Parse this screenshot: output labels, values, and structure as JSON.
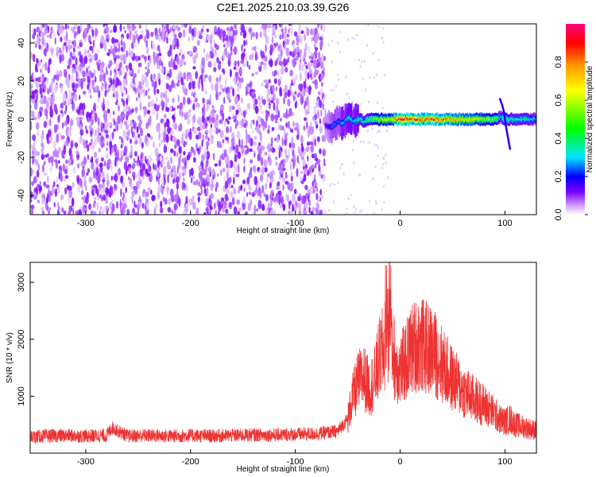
{
  "title": "C2E1.2025.210.03.39.G26",
  "chart_data": [
    {
      "type": "heatmap",
      "title": "C2E1.2025.210.03.39.G26",
      "xlabel": "Height of straight line (km)",
      "ylabel": "Frequency (Hz)",
      "xlim": [
        -353,
        130
      ],
      "ylim": [
        -50,
        50
      ],
      "xticks": [
        -300,
        -200,
        -100,
        0,
        100
      ],
      "yticks": [
        -40,
        -20,
        0,
        20,
        40
      ],
      "colorbar": {
        "label": "Normalized spectral amplitude",
        "range": [
          0,
          1
        ],
        "ticks": [
          0.0,
          0.2,
          0.4,
          0.6,
          0.8
        ],
        "colormap": [
          "#ffffff",
          "#cc99ff",
          "#7b00ff",
          "#0000ff",
          "#00e5ff",
          "#00ff00",
          "#ffff00",
          "#ff9900",
          "#ff0000",
          "#ff0080"
        ]
      },
      "features": {
        "noise_floor_region_x": [
          -353,
          -72
        ],
        "noise_floor_amplitude": 0.07,
        "signal_tone": {
          "x": [
            -72,
            -65,
            -60,
            -55,
            -50,
            -45,
            -40,
            -35,
            -30,
            -25,
            -20,
            -15,
            -10,
            -5,
            0,
            5,
            10,
            20,
            30,
            40,
            50,
            60,
            70,
            80,
            90,
            95,
            100,
            105,
            110,
            120,
            130
          ],
          "frequency_hz": [
            -3,
            -4,
            -1,
            -2,
            1,
            -1,
            0,
            -1,
            0,
            0,
            0,
            0,
            0,
            0,
            0,
            0,
            0,
            0,
            0,
            0,
            0,
            0,
            0,
            0,
            0,
            1,
            0,
            0,
            0,
            0,
            0
          ],
          "amplitude": [
            0.15,
            0.25,
            0.22,
            0.3,
            0.35,
            0.3,
            0.4,
            0.35,
            0.45,
            0.5,
            0.55,
            0.6,
            0.65,
            0.75,
            0.9,
            0.85,
            0.85,
            0.8,
            0.85,
            0.8,
            0.75,
            0.7,
            0.65,
            0.55,
            0.55,
            0.3,
            0.45,
            0.4,
            0.35,
            0.35,
            0.3
          ]
        },
        "spur_track": {
          "x": [
            95,
            97,
            99,
            101,
            103,
            105
          ],
          "frequency_hz": [
            11,
            8,
            4,
            -4,
            -10,
            -16
          ]
        }
      }
    },
    {
      "type": "line",
      "xlabel": "Height of straight line (km)",
      "ylabel": "SNR (10 * v/v)",
      "xlim": [
        -353,
        130
      ],
      "ylim": [
        0,
        3350
      ],
      "xticks": [
        -300,
        -200,
        -100,
        0,
        100
      ],
      "yticks": [
        1000,
        2000,
        3000
      ],
      "color": "#ee3333",
      "series": [
        {
          "x": [
            -353,
            -340,
            -320,
            -300,
            -280,
            -275,
            -260,
            -240,
            -220,
            -200,
            -180,
            -160,
            -140,
            -120,
            -100,
            -80,
            -60,
            -50,
            -45,
            -40,
            -35,
            -30,
            -25,
            -20,
            -15,
            -12,
            -10,
            -8,
            -5,
            0,
            5,
            10,
            15,
            20,
            25,
            30,
            35,
            40,
            50,
            60,
            70,
            80,
            90,
            95,
            100,
            105,
            110,
            120,
            130
          ],
          "y": [
            280,
            300,
            310,
            300,
            310,
            450,
            300,
            310,
            300,
            310,
            300,
            310,
            320,
            320,
            330,
            340,
            380,
            600,
            1000,
            1250,
            1350,
            1150,
            1250,
            1650,
            1850,
            2050,
            2600,
            2000,
            1600,
            1450,
            1600,
            1800,
            1900,
            1900,
            1850,
            1800,
            1700,
            1550,
            1300,
            1100,
            950,
            850,
            700,
            600,
            550,
            600,
            500,
            450,
            400
          ]
        }
      ]
    }
  ]
}
